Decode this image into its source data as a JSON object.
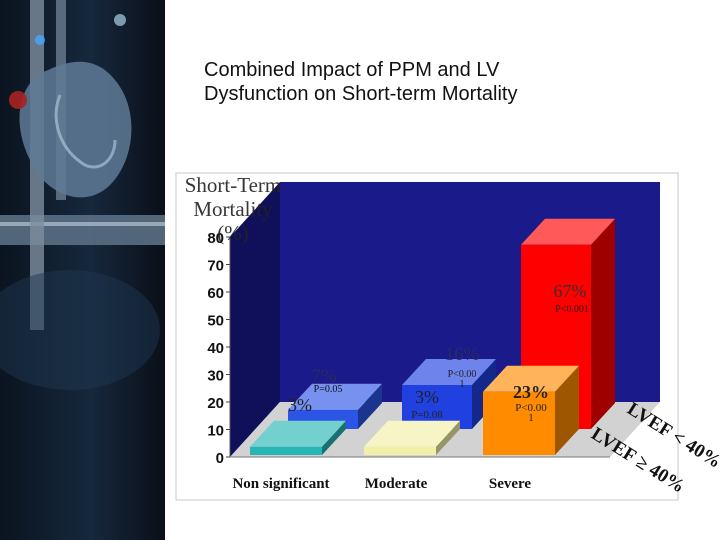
{
  "slide": {
    "title_line1": "Combined Impact of PPM and LV",
    "title_line2": "Dysfunction on Short-term Mortality"
  },
  "chart_data": {
    "type": "bar",
    "ylabel_lines": [
      "Short-Term",
      "Mortality",
      "(%)"
    ],
    "ylim": [
      0,
      80
    ],
    "yticks": [
      0,
      10,
      20,
      30,
      40,
      50,
      60,
      70,
      80
    ],
    "categories": [
      "Non significant",
      "Moderate",
      "Severe"
    ],
    "series": [
      {
        "name": "LVEF < 40%",
        "color": "#2c55e6",
        "values": [
          7,
          16,
          67
        ],
        "value_labels": [
          "7%",
          "16%",
          "67%"
        ],
        "p_values": [
          "P=0.05",
          "P<0.00 1",
          "P<0.001"
        ]
      },
      {
        "name": "LVEF ≥ 40%",
        "colors": [
          "#29b5b5",
          "#f2f0a8",
          "#ff8c00"
        ],
        "values": [
          3,
          3,
          23
        ],
        "value_labels": [
          "3%",
          "3%",
          "23%"
        ],
        "p_values": [
          "",
          "P=0.08",
          "P<0.00 1"
        ]
      }
    ],
    "colors": {
      "back_wall": "#1a1a8a",
      "floor": "#d2d2d2",
      "severe_reduced": "#ff0000",
      "moderate_reduced": "#2040e0"
    }
  }
}
